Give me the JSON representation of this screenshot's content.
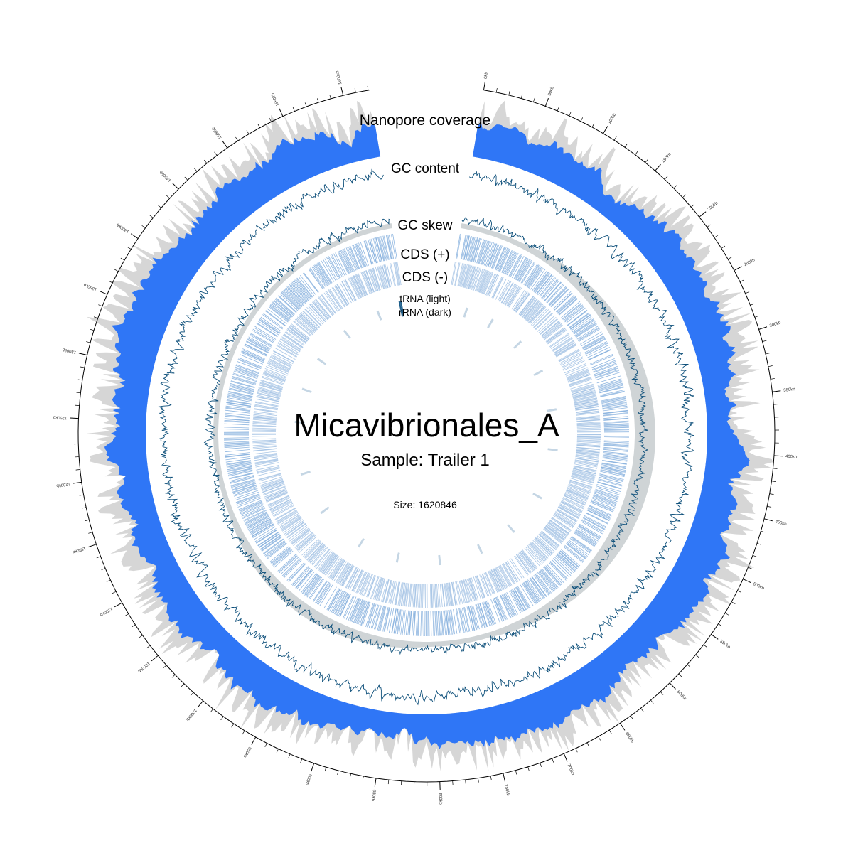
{
  "title": "Micavibrionales_A",
  "subtitle": "Sample: Trailer 1",
  "size_text": "Size: 1620846",
  "genome_size": 1620846,
  "track_labels": {
    "coverage": "Nanopore coverage",
    "gc_content": "GC content",
    "gc_skew": "GC skew",
    "cds_plus": "CDS (+)",
    "cds_minus": "CDS (-)",
    "trna": "tRNA (light)",
    "rrna": "rRNA (dark)"
  },
  "colors": {
    "coverage_fill": "#2f76f6",
    "coverage_shadow": "#d6d6d6",
    "gc_line": "#0d4f7a",
    "skew_line": "#0d4f7a",
    "skew_shade": "#cfd4d6",
    "cds_plus": "#8fb6e0",
    "cds_minus": "#a9c6e6",
    "trna": "#c5d6e4",
    "rrna": "#1f5f8b"
  },
  "axis": {
    "tick_step": 10000,
    "label_step": 50000,
    "tick_labels": [
      "0kb",
      "50kb",
      "100kb",
      "150kb",
      "200kb",
      "250kb",
      "300kb",
      "350kb",
      "400kb",
      "450kb",
      "500kb",
      "550kb",
      "600kb",
      "650kb",
      "700kb",
      "750kb",
      "800kb",
      "850kb",
      "900kb",
      "950kb",
      "1000kb",
      "1050kb",
      "1100kb",
      "1150kb",
      "1200kb",
      "1250kb",
      "1300kb",
      "1350kb",
      "1400kb",
      "1450kb",
      "1500kb",
      "1550kb",
      "1600kb"
    ]
  },
  "rrna_positions_kb": [
    1612,
    1615
  ],
  "trna_positions_kb": [
    38,
    96,
    170,
    245,
    330,
    415,
    520,
    610,
    690,
    780,
    870,
    955,
    1060,
    1150,
    1260,
    1330,
    1400,
    1480,
    1560
  ]
}
